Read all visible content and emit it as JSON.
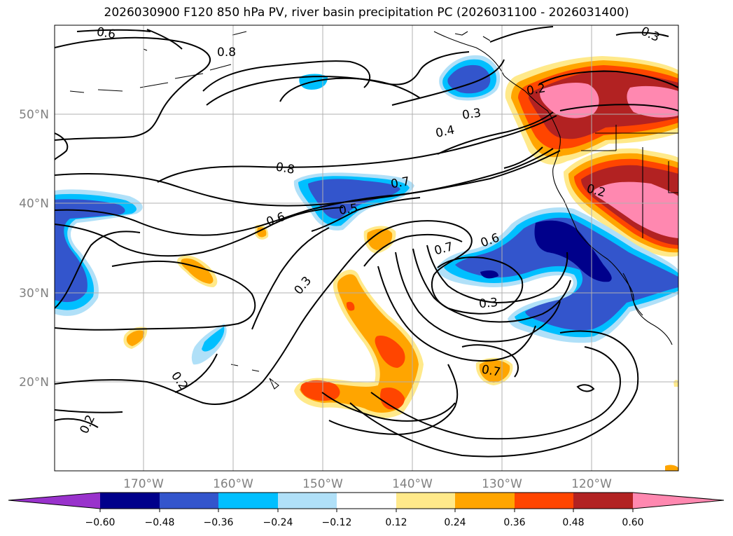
{
  "title": "2026030900 F120 850 hPa PV, river basin precipitation PC (2026031100 - 2026031400)",
  "axes": {
    "lon_labels": [
      "170°W",
      "160°W",
      "150°W",
      "140°W",
      "130°W",
      "120°W"
    ],
    "lat_labels": [
      "50°N",
      "40°N",
      "30°N",
      "20°N"
    ]
  },
  "colorbar": {
    "colors": [
      "#9932CC",
      "#00008B",
      "#3355CC",
      "#00BFFF",
      "#B0E0F8",
      "#FFFFFF",
      "#FFE98A",
      "#FFA500",
      "#FF4500",
      "#B22222",
      "#FF88B0"
    ],
    "ticks": [
      "−0.60",
      "−0.48",
      "−0.36",
      "−0.24",
      "−0.12",
      "0.12",
      "0.24",
      "0.36",
      "0.48",
      "0.60"
    ]
  },
  "contour_labels": [
    "0.6",
    "0.8",
    "0.3",
    "0.4",
    "0.2",
    "0.8",
    "0.7",
    "0.5",
    "0.6",
    "0.3",
    "0.2",
    "0.2",
    "0.7",
    "0.6",
    "0.3",
    "0.7",
    "0.2",
    "0.3"
  ],
  "colors": {
    "grid": "#b0b0b0",
    "tick_label": "#808080",
    "contour": "#000000",
    "coast": "#000000"
  }
}
